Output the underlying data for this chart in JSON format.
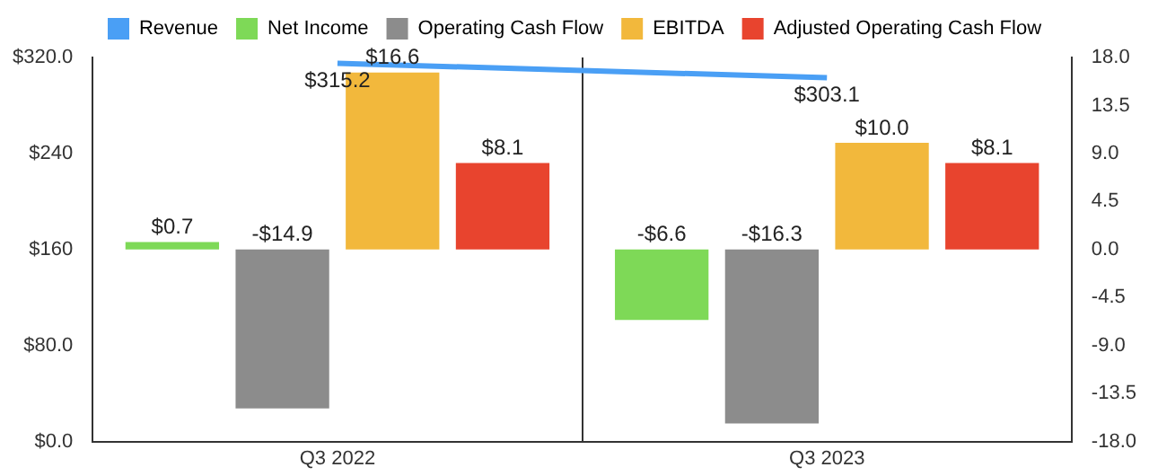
{
  "chart_data": {
    "type": "bar",
    "categories": [
      "Q3 2022",
      "Q3 2023"
    ],
    "series": [
      {
        "name": "Revenue",
        "type": "line",
        "color": "#4a9ff5",
        "values": [
          315.2,
          303.1
        ],
        "value_labels": [
          "$315.2",
          "$303.1"
        ]
      },
      {
        "name": "Net Income",
        "color": "#7ed957",
        "axis": "y2",
        "values": [
          0.7,
          -6.6
        ],
        "value_labels": [
          "$0.7",
          "-$6.6"
        ]
      },
      {
        "name": "Operating Cash Flow",
        "color": "#8c8c8c",
        "axis": "y2",
        "values": [
          -14.9,
          -16.3
        ],
        "value_labels": [
          "-$14.9",
          "-$16.3"
        ]
      },
      {
        "name": "EBITDA",
        "color": "#f2b83c",
        "axis": "y2",
        "values": [
          16.6,
          10.0
        ],
        "value_labels": [
          "$16.6",
          "$10.0"
        ]
      },
      {
        "name": "Adjusted Operating Cash Flow",
        "color": "#e8442e",
        "axis": "y2",
        "values": [
          8.1,
          8.1
        ],
        "value_labels": [
          "$8.1",
          "$8.1"
        ]
      }
    ],
    "ylim": [
      0,
      320
    ],
    "yticks": [
      {
        "value": 0,
        "label": "$0.0"
      },
      {
        "value": 80,
        "label": "$80.0"
      },
      {
        "value": 160,
        "label": "$160"
      },
      {
        "value": 240,
        "label": "$240"
      },
      {
        "value": 320,
        "label": "$320.0"
      }
    ],
    "y2lim": [
      -18,
      18
    ],
    "y2ticks": [
      {
        "value": -18,
        "label": "-18.0"
      },
      {
        "value": -13.5,
        "label": "-13.5"
      },
      {
        "value": -9,
        "label": "-9.0"
      },
      {
        "value": -4.5,
        "label": "-4.5"
      },
      {
        "value": 0,
        "label": "0.0"
      },
      {
        "value": 4.5,
        "label": "4.5"
      },
      {
        "value": 9,
        "label": "9.0"
      },
      {
        "value": 13.5,
        "label": "13.5"
      },
      {
        "value": 18,
        "label": "18.0"
      }
    ],
    "grid": "x",
    "legend": "top",
    "marker": "none"
  }
}
